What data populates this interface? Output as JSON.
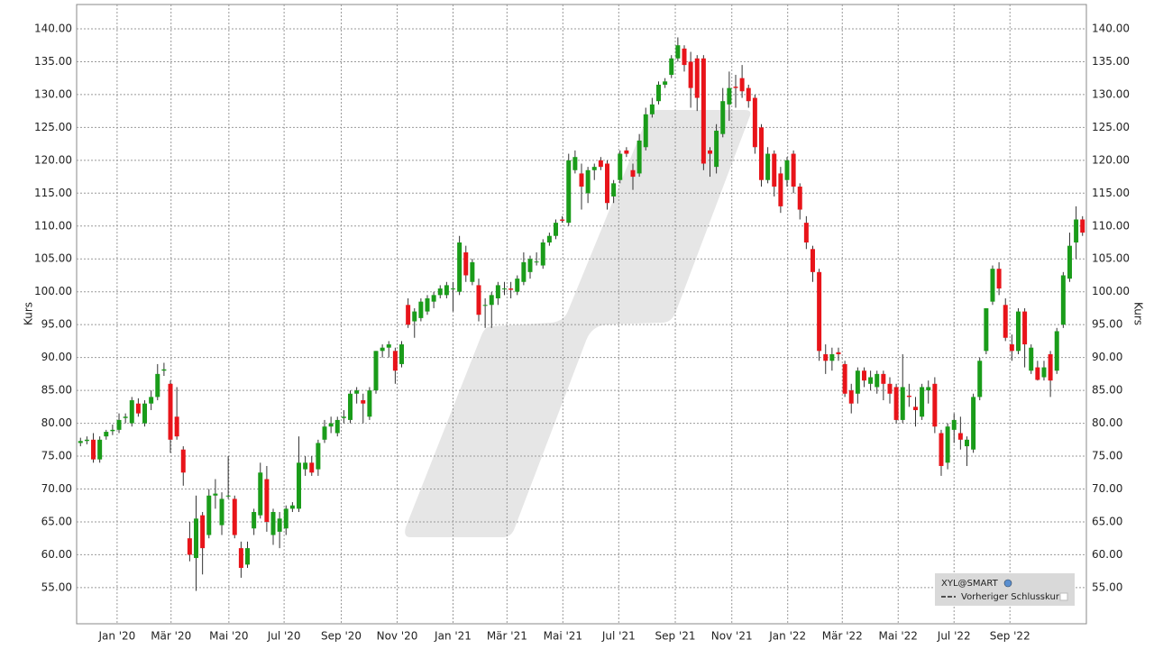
{
  "chart_data": {
    "type": "candlestick",
    "ylabel": "Kurs",
    "up_color": "#1a9c1a",
    "down_color": "#e8141a",
    "grid": true,
    "legend": {
      "symbol": "XYL@SMART",
      "previous_close": "Vorheriger Schlusskurs"
    },
    "xlim": [
      -0.6,
      156.6
    ],
    "xticks": [
      {
        "value": 5.7,
        "label": "Jan '20"
      },
      {
        "value": 14.1,
        "label": "Mär '20"
      },
      {
        "value": 23.1,
        "label": "Mai '20"
      },
      {
        "value": 31.7,
        "label": "Jul '20"
      },
      {
        "value": 40.6,
        "label": "Sep '20"
      },
      {
        "value": 49.3,
        "label": "Nov '20"
      },
      {
        "value": 58.0,
        "label": "Jan '21"
      },
      {
        "value": 66.4,
        "label": "Mär '21"
      },
      {
        "value": 75.1,
        "label": "Mai '21"
      },
      {
        "value": 83.8,
        "label": "Jul '21"
      },
      {
        "value": 92.6,
        "label": "Sep '21"
      },
      {
        "value": 101.4,
        "label": "Nov '21"
      },
      {
        "value": 110.1,
        "label": "Jan '22"
      },
      {
        "value": 118.6,
        "label": "Mär '22"
      },
      {
        "value": 127.3,
        "label": "Mai '22"
      },
      {
        "value": 136.0,
        "label": "Jul '22"
      },
      {
        "value": 144.7,
        "label": "Sep '22"
      }
    ],
    "ylim": [
      49.5,
      143.7
    ],
    "yticks": [
      {
        "value": 55,
        "label": "55.00"
      },
      {
        "value": 60,
        "label": "60.00"
      },
      {
        "value": 65,
        "label": "65.00"
      },
      {
        "value": 70,
        "label": "70.00"
      },
      {
        "value": 75,
        "label": "75.00"
      },
      {
        "value": 80,
        "label": "80.00"
      },
      {
        "value": 85,
        "label": "85.00"
      },
      {
        "value": 90,
        "label": "90.00"
      },
      {
        "value": 95,
        "label": "95.00"
      },
      {
        "value": 100,
        "label": "100.00"
      },
      {
        "value": 105,
        "label": "105.00"
      },
      {
        "value": 110,
        "label": "110.00"
      },
      {
        "value": 115,
        "label": "115.00"
      },
      {
        "value": 120,
        "label": "120.00"
      },
      {
        "value": 125,
        "label": "125.00"
      },
      {
        "value": 130,
        "label": "130.00"
      },
      {
        "value": 135,
        "label": "135.00"
      },
      {
        "value": 140,
        "label": "140.00"
      }
    ],
    "ohlc": [
      [
        77,
        77.8,
        76.5,
        77.3
      ],
      [
        77.3,
        78,
        76.8,
        77.5
      ],
      [
        77.5,
        78.5,
        74,
        74.5
      ],
      [
        74.5,
        78,
        74,
        77.5
      ],
      [
        78,
        79,
        77.5,
        78.7
      ],
      [
        78.8,
        79.8,
        78.2,
        79
      ],
      [
        79,
        81.5,
        78.5,
        80.5
      ],
      [
        80.8,
        81.5,
        80,
        81
      ],
      [
        80,
        84,
        79.5,
        83.5
      ],
      [
        83,
        83.8,
        81,
        81.5
      ],
      [
        80,
        83.5,
        79.5,
        83
      ],
      [
        83,
        85,
        82,
        84
      ],
      [
        84,
        89,
        83.5,
        87.5
      ],
      [
        88,
        89.2,
        87.2,
        88.2
      ],
      [
        86,
        86.5,
        75.5,
        77.5
      ],
      [
        81,
        85.5,
        77.5,
        78
      ],
      [
        76,
        76.5,
        70.5,
        72.5
      ],
      [
        62.5,
        65,
        59,
        60
      ],
      [
        59.5,
        69,
        54.5,
        65.5
      ],
      [
        66,
        66.5,
        57,
        61
      ],
      [
        63,
        70,
        62.5,
        69
      ],
      [
        69,
        71.5,
        67,
        69.3
      ],
      [
        64.5,
        69.5,
        63,
        68.5
      ],
      [
        69,
        75,
        68.5,
        69
      ],
      [
        68.5,
        69,
        62.5,
        63
      ],
      [
        61,
        62,
        56.5,
        58
      ],
      [
        58.5,
        62,
        58,
        61
      ],
      [
        64,
        67,
        63,
        66.5
      ],
      [
        66,
        74,
        65.5,
        72.5
      ],
      [
        71.5,
        73.5,
        63.5,
        65
      ],
      [
        63,
        67,
        61.5,
        66.5
      ],
      [
        63.5,
        66.5,
        61,
        65.5
      ],
      [
        64,
        67.5,
        63,
        67
      ],
      [
        67,
        68,
        66.5,
        67.5
      ],
      [
        67,
        78,
        66.5,
        74
      ],
      [
        73,
        75,
        72,
        74
      ],
      [
        74,
        75,
        72,
        72.5
      ],
      [
        73,
        77.5,
        72,
        77
      ],
      [
        77.5,
        80.5,
        77,
        79.5
      ],
      [
        79.5,
        81,
        78.5,
        80
      ],
      [
        78.5,
        81,
        78,
        80.5
      ],
      [
        80.8,
        82,
        80,
        81
      ],
      [
        80.5,
        85,
        80,
        84.5
      ],
      [
        84.5,
        85.5,
        83,
        85
      ],
      [
        83.5,
        84.5,
        80,
        83
      ],
      [
        81,
        85.5,
        80.5,
        85
      ],
      [
        85,
        91,
        84.5,
        91
      ],
      [
        91,
        92,
        90,
        91.5
      ],
      [
        91.5,
        92.5,
        90,
        92
      ],
      [
        91,
        91.5,
        86,
        88
      ],
      [
        89,
        92.5,
        88.5,
        92
      ],
      [
        98,
        99,
        94.5,
        95
      ],
      [
        95.5,
        97.5,
        93,
        97
      ],
      [
        96,
        99,
        95.5,
        98.5
      ],
      [
        97,
        99.5,
        96.5,
        99
      ],
      [
        98.5,
        100,
        97.5,
        99.5
      ],
      [
        99.5,
        101,
        99,
        100.5
      ],
      [
        99.5,
        101.5,
        99,
        101
      ],
      [
        100.5,
        101.5,
        97,
        100.5
      ],
      [
        100,
        108.5,
        99.5,
        107.5
      ],
      [
        106,
        107,
        101.5,
        102.5
      ],
      [
        101.5,
        105,
        101,
        104.5
      ],
      [
        101,
        102,
        95.5,
        96.5
      ],
      [
        98,
        99,
        94.5,
        98
      ],
      [
        98,
        100,
        94.5,
        99.5
      ],
      [
        99,
        101.5,
        98,
        101
      ],
      [
        100.5,
        101.5,
        99.5,
        100.5
      ],
      [
        100.5,
        101.5,
        99,
        100.3
      ],
      [
        100,
        102.5,
        99.5,
        102
      ],
      [
        101.5,
        106,
        101,
        104.5
      ],
      [
        103,
        105.5,
        102,
        105
      ],
      [
        104.5,
        106,
        104,
        104.6
      ],
      [
        104,
        108,
        103.5,
        107.5
      ],
      [
        107.5,
        109,
        107,
        108.5
      ],
      [
        108.5,
        111,
        108,
        110.5
      ],
      [
        111,
        111.5,
        110.5,
        110.8
      ],
      [
        110.5,
        121,
        110,
        120
      ],
      [
        118.5,
        121.5,
        118,
        120.5
      ],
      [
        118,
        119.5,
        112.5,
        116
      ],
      [
        115,
        119,
        113.5,
        118.5
      ],
      [
        118.5,
        119.5,
        117,
        119
      ],
      [
        120,
        120.5,
        118.5,
        119
      ],
      [
        119.5,
        120,
        112.5,
        113.5
      ],
      [
        114.5,
        117,
        113.5,
        116.5
      ],
      [
        117,
        121.5,
        116.5,
        121
      ],
      [
        121.5,
        122,
        120.5,
        121
      ],
      [
        118.5,
        119.5,
        115.5,
        117.5
      ],
      [
        118,
        124,
        117.5,
        123
      ],
      [
        122,
        128,
        121.5,
        127
      ],
      [
        127,
        129.5,
        126.5,
        128.5
      ],
      [
        129,
        132,
        128.5,
        131.5
      ],
      [
        131.5,
        132.5,
        131,
        132
      ],
      [
        133,
        136,
        132.5,
        135.5
      ],
      [
        135.5,
        138.7,
        135,
        137.5
      ],
      [
        137,
        137.5,
        133.5,
        134.5
      ],
      [
        135,
        136.5,
        128,
        131
      ],
      [
        135.5,
        136,
        127.5,
        129.5
      ],
      [
        135.5,
        136,
        118.5,
        119.5
      ],
      [
        121.5,
        122,
        117.5,
        121
      ],
      [
        119,
        125.5,
        118,
        124.5
      ],
      [
        124,
        131,
        123.5,
        129
      ],
      [
        128.5,
        133.5,
        126,
        131
      ],
      [
        131.2,
        133,
        128,
        131
      ],
      [
        132.5,
        134.5,
        129.5,
        130.5
      ],
      [
        131,
        131.5,
        128,
        129
      ],
      [
        129.5,
        130,
        121,
        122
      ],
      [
        125,
        125.5,
        116,
        117
      ],
      [
        117,
        122,
        116.5,
        121
      ],
      [
        121,
        121.5,
        114.5,
        116
      ],
      [
        118,
        119,
        112,
        113
      ],
      [
        117,
        120.5,
        116,
        120
      ],
      [
        121,
        121.5,
        115,
        116
      ],
      [
        116,
        116.5,
        111,
        112.5
      ],
      [
        110.5,
        111.5,
        106.5,
        107.5
      ],
      [
        106.5,
        107,
        101.5,
        103
      ],
      [
        103,
        103.5,
        89.5,
        91
      ],
      [
        90.5,
        92,
        87.5,
        89.5
      ],
      [
        89.5,
        91.5,
        88,
        90.5
      ],
      [
        90.8,
        91.5,
        89.5,
        90.5
      ],
      [
        89,
        89.5,
        84,
        84.5
      ],
      [
        85,
        86,
        81.5,
        83
      ],
      [
        84.5,
        88.5,
        83,
        88
      ],
      [
        88,
        88.5,
        85.5,
        86.5
      ],
      [
        86,
        88,
        85,
        87
      ],
      [
        85.5,
        88,
        84.5,
        87.5
      ],
      [
        87.5,
        88,
        83.5,
        86
      ],
      [
        86,
        87,
        83,
        84.5
      ],
      [
        85.5,
        86,
        80,
        80.5
      ],
      [
        80.5,
        90.5,
        80,
        85.5
      ],
      [
        84.2,
        86,
        82.5,
        84
      ],
      [
        82.5,
        84,
        79.5,
        82
      ],
      [
        81,
        86,
        80.5,
        85.5
      ],
      [
        85,
        86.5,
        83,
        85.5
      ],
      [
        86,
        87,
        78.5,
        79.5
      ],
      [
        78.5,
        79,
        72,
        73.5
      ],
      [
        74,
        80,
        73,
        79.5
      ],
      [
        79,
        81.5,
        77,
        80.5
      ],
      [
        78.5,
        81,
        76,
        77.5
      ],
      [
        76.5,
        78,
        73.5,
        77.5
      ],
      [
        76,
        84.5,
        75.5,
        84
      ],
      [
        84,
        90,
        83.5,
        89.5
      ],
      [
        91,
        97.5,
        90.5,
        97.5
      ],
      [
        98.5,
        104,
        98,
        103.5
      ],
      [
        103.5,
        104.5,
        99.5,
        100.5
      ],
      [
        98,
        99,
        92.5,
        93
      ],
      [
        92,
        93.5,
        89.5,
        91
      ],
      [
        91,
        97.5,
        90.5,
        97
      ],
      [
        97,
        97.5,
        88.5,
        92
      ],
      [
        88,
        92,
        87.5,
        91.5
      ],
      [
        88.5,
        89.5,
        86.5,
        86.6
      ],
      [
        87,
        89.5,
        86.5,
        88.5
      ],
      [
        90.5,
        91,
        84,
        86.5
      ],
      [
        88,
        94.5,
        87.5,
        94
      ],
      [
        95,
        103,
        94.5,
        102.5
      ],
      [
        102,
        109,
        101.5,
        107
      ],
      [
        107.5,
        113,
        105,
        111
      ],
      [
        111,
        111.5,
        108.5,
        109
      ]
    ]
  }
}
